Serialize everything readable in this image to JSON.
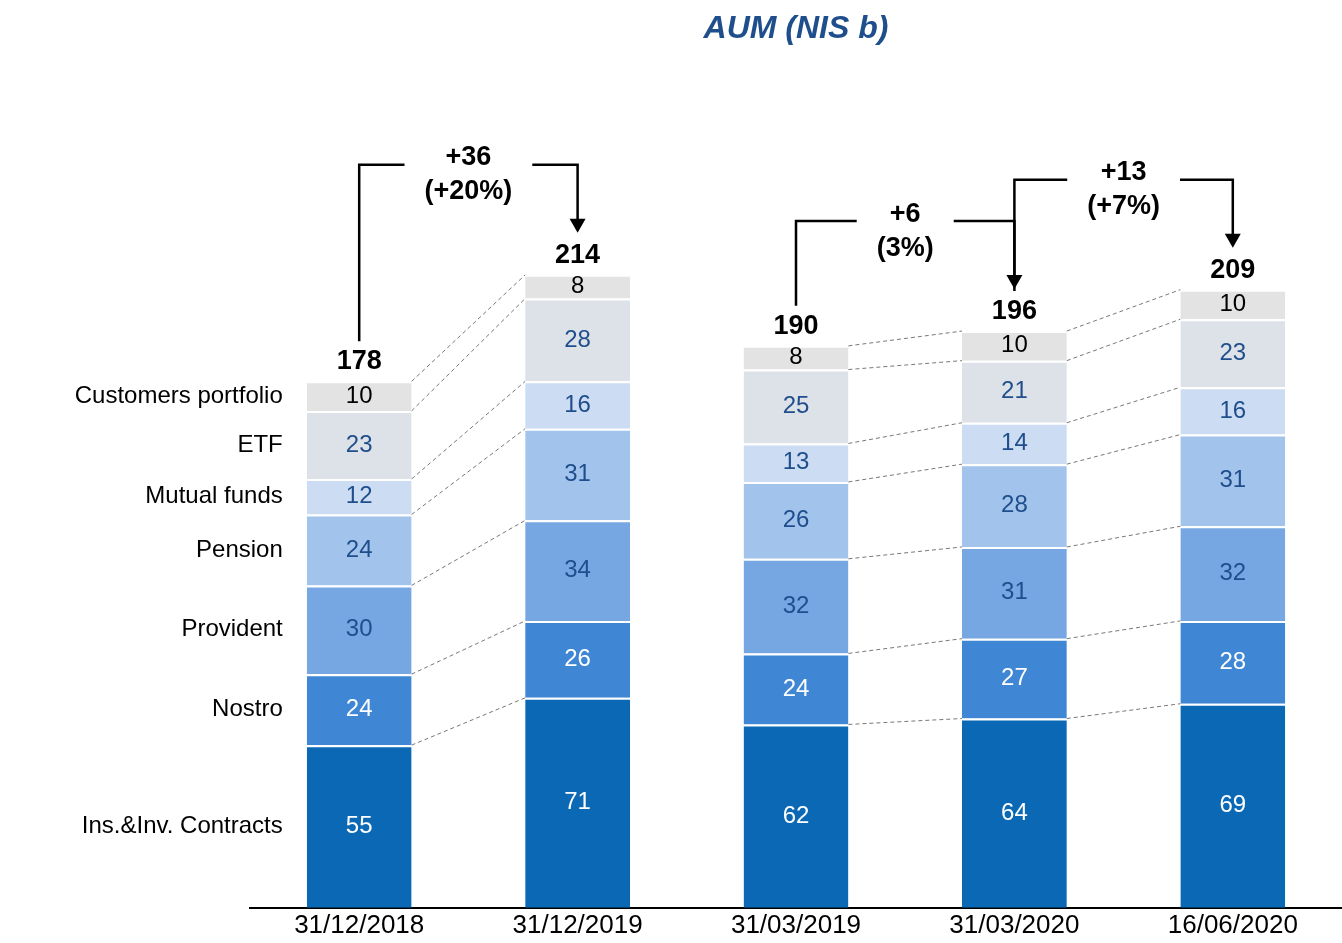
{
  "chart_data": {
    "type": "bar",
    "title": "AUM (NIS b)",
    "stacked": true,
    "data_labels": true,
    "legend": false,
    "grid": false,
    "tick_labels": "x",
    "categories": [
      "31/12/2018",
      "31/12/2019",
      "31/03/2019",
      "31/03/2020",
      "16/06/2020"
    ],
    "series": [
      {
        "name": "Ins.&Inv. Contracts",
        "color": "#0b68b4",
        "values": [
          55,
          71,
          62,
          64,
          69
        ]
      },
      {
        "name": "Nostro",
        "color": "#3f87d4",
        "values": [
          24,
          26,
          24,
          27,
          28
        ]
      },
      {
        "name": "Provident",
        "color": "#76a7e2",
        "values": [
          30,
          34,
          32,
          31,
          32
        ]
      },
      {
        "name": "Pension",
        "color": "#a2c3ec",
        "values": [
          24,
          31,
          26,
          28,
          31
        ]
      },
      {
        "name": "Mutual funds",
        "color": "#cbdcf3",
        "values": [
          12,
          16,
          13,
          14,
          16
        ]
      },
      {
        "name": "ETF",
        "color": "#dde1e8",
        "values": [
          23,
          28,
          25,
          21,
          23
        ]
      },
      {
        "name": "Customers portfolio",
        "color": "#e3e3e3",
        "values": [
          10,
          8,
          8,
          10,
          10
        ]
      }
    ],
    "totals": [
      "178",
      "214",
      "190",
      "196",
      "209"
    ],
    "annotations": [
      "+36 (+20%)",
      "+6 (3%)",
      "+13 (+7%)"
    ]
  }
}
